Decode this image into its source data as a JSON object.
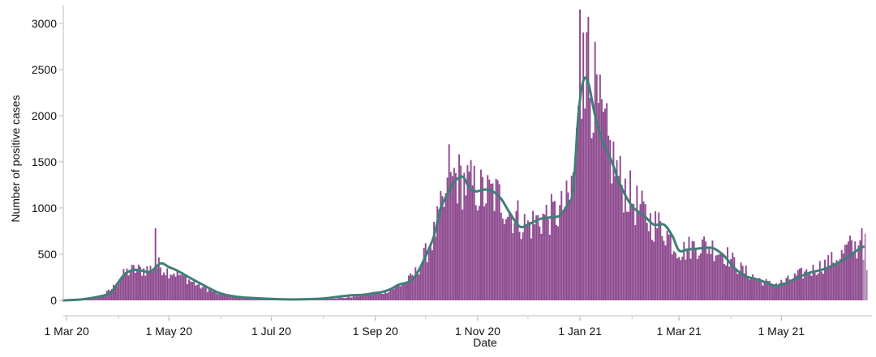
{
  "chart_data": {
    "type": "bar",
    "title": "",
    "xlabel": "Date",
    "ylabel": "Number of positive cases",
    "ylim": [
      0,
      3200
    ],
    "yticks": [
      0,
      500,
      1000,
      1500,
      2000,
      2500,
      3000
    ],
    "xlim": [
      "2020-02-28",
      "2021-06-24"
    ],
    "xticks": [
      {
        "date": "2020-03-01",
        "label": "1 Mar 20"
      },
      {
        "date": "2020-05-01",
        "label": "1 May 20"
      },
      {
        "date": "2020-07-01",
        "label": "1 Jul 20"
      },
      {
        "date": "2020-09-01",
        "label": "1 Sep 20"
      },
      {
        "date": "2020-11-01",
        "label": "1 Nov 20"
      },
      {
        "date": "2021-01-01",
        "label": "1 Jan 21"
      },
      {
        "date": "2021-03-01",
        "label": "1 Mar 21"
      },
      {
        "date": "2021-05-01",
        "label": "1 May 21"
      }
    ],
    "grid": false,
    "start_date": "2020-02-28",
    "series": [
      {
        "color": "#8e4a8f",
        "highlight_last_days": 3,
        "highlight_color": "#b08ab2",
        "points": [
          [
            "2020-02-28",
            0
          ],
          [
            "2020-03-08",
            5
          ],
          [
            "2020-03-15",
            25
          ],
          [
            "2020-03-22",
            50
          ],
          [
            "2020-03-27",
            110
          ],
          [
            "2020-04-01",
            200
          ],
          [
            "2020-04-05",
            300
          ],
          [
            "2020-04-10",
            330
          ],
          [
            "2020-04-15",
            330
          ],
          [
            "2020-04-20",
            340
          ],
          [
            "2020-04-25",
            380
          ],
          [
            "2020-04-30",
            320
          ],
          [
            "2020-05-05",
            300
          ],
          [
            "2020-05-10",
            250
          ],
          [
            "2020-05-20",
            150
          ],
          [
            "2020-05-31",
            70
          ],
          [
            "2020-06-15",
            30
          ],
          [
            "2020-07-01",
            15
          ],
          [
            "2020-07-15",
            10
          ],
          [
            "2020-08-01",
            15
          ],
          [
            "2020-08-15",
            30
          ],
          [
            "2020-08-25",
            55
          ],
          [
            "2020-09-05",
            80
          ],
          [
            "2020-09-12",
            130
          ],
          [
            "2020-09-20",
            200
          ],
          [
            "2020-09-25",
            300
          ],
          [
            "2020-10-01",
            500
          ],
          [
            "2020-10-05",
            650
          ],
          [
            "2020-10-10",
            950
          ],
          [
            "2020-10-15",
            1150
          ],
          [
            "2020-10-18",
            1350
          ],
          [
            "2020-10-22",
            1300
          ],
          [
            "2020-10-27",
            1250
          ],
          [
            "2020-11-01",
            1200
          ],
          [
            "2020-11-05",
            1150
          ],
          [
            "2020-11-10",
            1150
          ],
          [
            "2020-11-15",
            1100
          ],
          [
            "2020-11-20",
            950
          ],
          [
            "2020-11-25",
            900
          ],
          [
            "2020-11-30",
            800
          ],
          [
            "2020-12-05",
            850
          ],
          [
            "2020-12-10",
            900
          ],
          [
            "2020-12-20",
            950
          ],
          [
            "2020-12-26",
            1100
          ],
          [
            "2020-12-29",
            1500
          ],
          [
            "2021-01-01",
            2100
          ],
          [
            "2021-01-04",
            2500
          ],
          [
            "2021-01-07",
            2400
          ],
          [
            "2021-01-10",
            2200
          ],
          [
            "2021-01-14",
            1900
          ],
          [
            "2021-01-19",
            1600
          ],
          [
            "2021-01-25",
            1300
          ],
          [
            "2021-02-01",
            1100
          ],
          [
            "2021-02-05",
            1000
          ],
          [
            "2021-02-12",
            850
          ],
          [
            "2021-02-20",
            780
          ],
          [
            "2021-02-26",
            600
          ],
          [
            "2021-03-03",
            530
          ],
          [
            "2021-03-08",
            580
          ],
          [
            "2021-03-15",
            600
          ],
          [
            "2021-03-20",
            580
          ],
          [
            "2021-03-30",
            480
          ],
          [
            "2021-04-06",
            350
          ],
          [
            "2021-04-15",
            250
          ],
          [
            "2021-04-25",
            170
          ],
          [
            "2021-05-03",
            200
          ],
          [
            "2021-05-12",
            280
          ],
          [
            "2021-05-20",
            330
          ],
          [
            "2021-05-28",
            400
          ],
          [
            "2021-06-05",
            470
          ],
          [
            "2021-06-10",
            580
          ],
          [
            "2021-06-18",
            560
          ],
          [
            "2021-06-21",
            600
          ]
        ],
        "spikes": [
          [
            "2020-04-23",
            780
          ],
          [
            "2021-01-01",
            3150
          ],
          [
            "2021-01-06",
            3070
          ],
          [
            "2020-10-15",
            1690
          ],
          [
            "2021-01-03",
            2900
          ],
          [
            "2021-06-18",
            780
          ],
          [
            "2021-06-17",
            650
          ],
          [
            "2021-06-21",
            330
          ],
          [
            "2021-01-10",
            2800
          ]
        ]
      },
      {
        "kind": "line",
        "color": "#3f7f78",
        "points": [
          [
            "2020-02-28",
            0
          ],
          [
            "2020-03-10",
            10
          ],
          [
            "2020-03-20",
            40
          ],
          [
            "2020-03-27",
            80
          ],
          [
            "2020-04-01",
            200
          ],
          [
            "2020-04-05",
            290
          ],
          [
            "2020-04-10",
            330
          ],
          [
            "2020-04-15",
            320
          ],
          [
            "2020-04-20",
            310
          ],
          [
            "2020-04-26",
            400
          ],
          [
            "2020-05-01",
            360
          ],
          [
            "2020-05-05",
            330
          ],
          [
            "2020-05-10",
            280
          ],
          [
            "2020-05-20",
            180
          ],
          [
            "2020-05-31",
            80
          ],
          [
            "2020-06-10",
            40
          ],
          [
            "2020-06-20",
            25
          ],
          [
            "2020-07-01",
            15
          ],
          [
            "2020-07-15",
            10
          ],
          [
            "2020-08-01",
            20
          ],
          [
            "2020-08-10",
            40
          ],
          [
            "2020-08-18",
            55
          ],
          [
            "2020-08-25",
            60
          ],
          [
            "2020-09-01",
            80
          ],
          [
            "2020-09-05",
            90
          ],
          [
            "2020-09-10",
            120
          ],
          [
            "2020-09-15",
            170
          ],
          [
            "2020-09-22",
            210
          ],
          [
            "2020-09-27",
            330
          ],
          [
            "2020-10-02",
            520
          ],
          [
            "2020-10-06",
            700
          ],
          [
            "2020-10-10",
            1000
          ],
          [
            "2020-10-14",
            1150
          ],
          [
            "2020-10-18",
            1280
          ],
          [
            "2020-10-23",
            1340
          ],
          [
            "2020-10-27",
            1220
          ],
          [
            "2020-10-31",
            1180
          ],
          [
            "2020-11-05",
            1200
          ],
          [
            "2020-11-10",
            1180
          ],
          [
            "2020-11-15",
            1100
          ],
          [
            "2020-11-20",
            950
          ],
          [
            "2020-11-26",
            800
          ],
          [
            "2020-12-01",
            820
          ],
          [
            "2020-12-08",
            880
          ],
          [
            "2020-12-15",
            900
          ],
          [
            "2020-12-20",
            920
          ],
          [
            "2020-12-25",
            1050
          ],
          [
            "2020-12-28",
            1200
          ],
          [
            "2020-12-31",
            2000
          ],
          [
            "2021-01-03",
            2380
          ],
          [
            "2021-01-06",
            2350
          ],
          [
            "2021-01-10",
            2000
          ],
          [
            "2021-01-15",
            1700
          ],
          [
            "2021-01-20",
            1500
          ],
          [
            "2021-01-25",
            1250
          ],
          [
            "2021-02-01",
            1020
          ],
          [
            "2021-02-08",
            920
          ],
          [
            "2021-02-14",
            820
          ],
          [
            "2021-02-20",
            820
          ],
          [
            "2021-02-25",
            700
          ],
          [
            "2021-03-01",
            540
          ],
          [
            "2021-03-06",
            550
          ],
          [
            "2021-03-12",
            560
          ],
          [
            "2021-03-18",
            570
          ],
          [
            "2021-03-22",
            560
          ],
          [
            "2021-03-28",
            480
          ],
          [
            "2021-04-03",
            350
          ],
          [
            "2021-04-10",
            260
          ],
          [
            "2021-04-18",
            220
          ],
          [
            "2021-04-27",
            160
          ],
          [
            "2021-05-03",
            180
          ],
          [
            "2021-05-10",
            240
          ],
          [
            "2021-05-18",
            300
          ],
          [
            "2021-05-25",
            330
          ],
          [
            "2021-06-01",
            380
          ],
          [
            "2021-06-08",
            450
          ],
          [
            "2021-06-15",
            540
          ],
          [
            "2021-06-19",
            580
          ]
        ]
      }
    ]
  }
}
